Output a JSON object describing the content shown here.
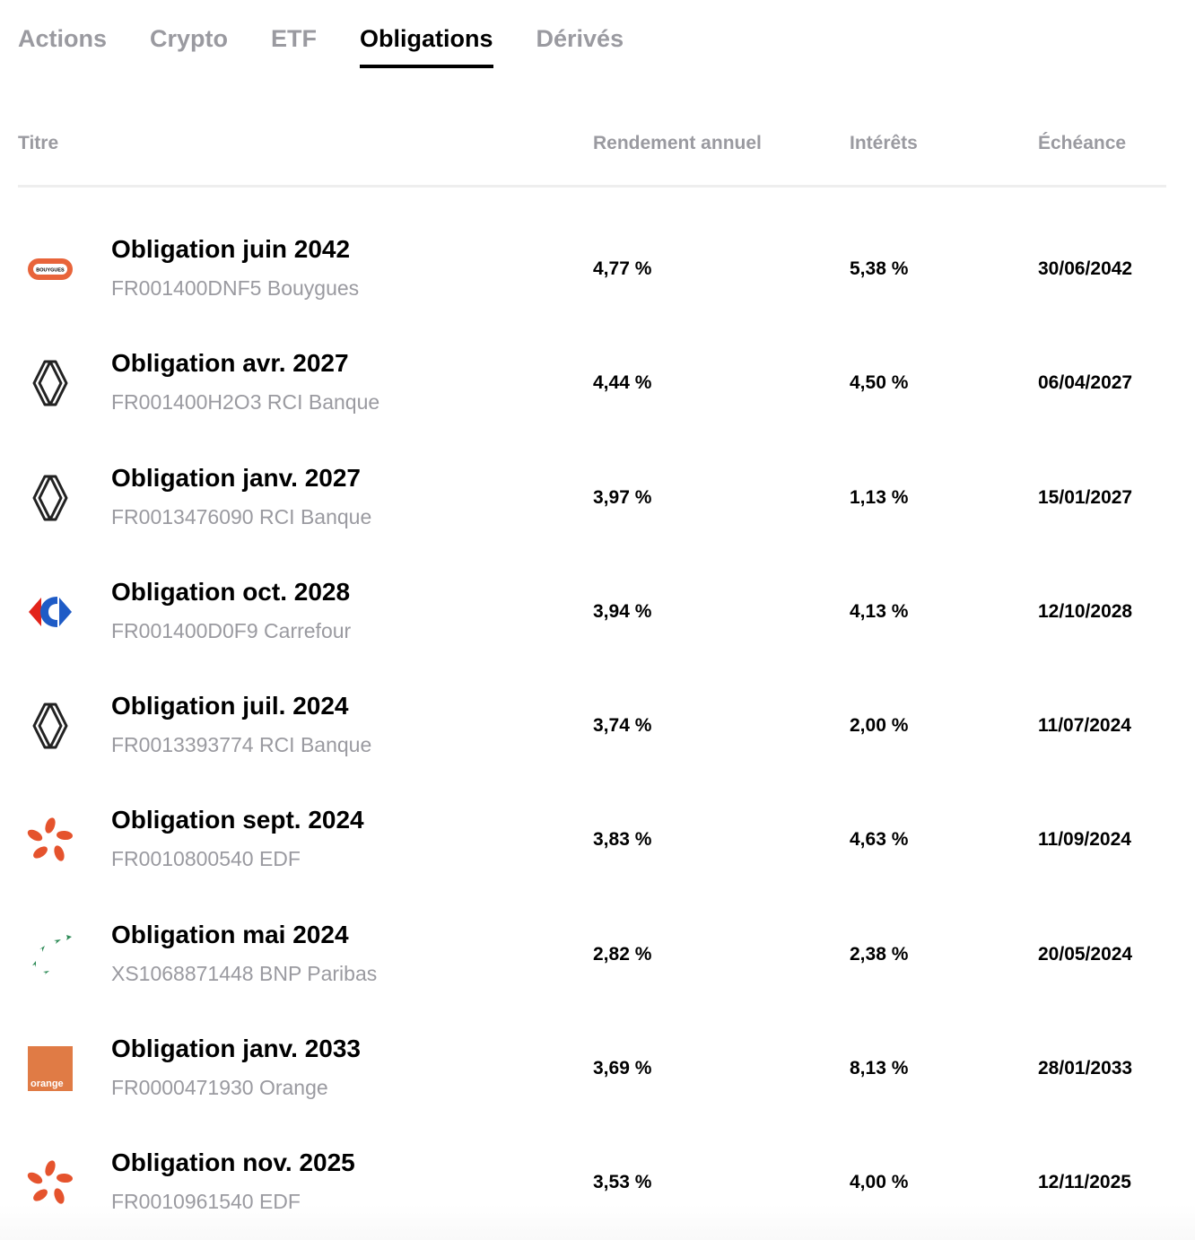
{
  "tabs": [
    {
      "label": "Actions",
      "active": false
    },
    {
      "label": "Crypto",
      "active": false
    },
    {
      "label": "ETF",
      "active": false
    },
    {
      "label": "Obligations",
      "active": true
    },
    {
      "label": "Dérivés",
      "active": false
    }
  ],
  "table": {
    "headers": {
      "title": "Titre",
      "yield": "Rendement annuel",
      "interest": "Intérêts",
      "maturity": "Échéance"
    },
    "rows": [
      {
        "icon": "bouygues-logo-icon",
        "logo_text": "BOUYGUES",
        "name": "Obligation juin 2042",
        "sub": "FR001400DNF5 Bouygues",
        "yield": "4,77 %",
        "interest": "5,38 %",
        "maturity": "30/06/2042"
      },
      {
        "icon": "renault-logo-icon",
        "name": "Obligation avr. 2027",
        "sub": "FR001400H2O3 RCI Banque",
        "yield": "4,44 %",
        "interest": "4,50 %",
        "maturity": "06/04/2027"
      },
      {
        "icon": "renault-logo-icon",
        "name": "Obligation janv. 2027",
        "sub": "FR0013476090 RCI Banque",
        "yield": "3,97 %",
        "interest": "1,13 %",
        "maturity": "15/01/2027"
      },
      {
        "icon": "carrefour-logo-icon",
        "name": "Obligation oct. 2028",
        "sub": "FR001400D0F9 Carrefour",
        "yield": "3,94 %",
        "interest": "4,13 %",
        "maturity": "12/10/2028"
      },
      {
        "icon": "renault-logo-icon",
        "name": "Obligation juil. 2024",
        "sub": "FR0013393774 RCI Banque",
        "yield": "3,74 %",
        "interest": "2,00 %",
        "maturity": "11/07/2024"
      },
      {
        "icon": "edf-logo-icon",
        "name": "Obligation sept. 2024",
        "sub": "FR0010800540 EDF",
        "yield": "3,83 %",
        "interest": "4,63 %",
        "maturity": "11/09/2024"
      },
      {
        "icon": "bnp-paribas-logo-icon",
        "name": "Obligation mai 2024",
        "sub": "XS1068871448 BNP Paribas",
        "yield": "2,82 %",
        "interest": "2,38 %",
        "maturity": "20/05/2024"
      },
      {
        "icon": "orange-logo-icon",
        "logo_text": "orange",
        "name": "Obligation janv. 2033",
        "sub": "FR0000471930 Orange",
        "yield": "3,69 %",
        "interest": "8,13 %",
        "maturity": "28/01/2033"
      },
      {
        "icon": "edf-logo-icon",
        "name": "Obligation nov. 2025",
        "sub": "FR0010961540 EDF",
        "yield": "3,53 %",
        "interest": "4,00 %",
        "maturity": "12/11/2025"
      }
    ]
  },
  "colors": {
    "active_text": "#000000",
    "muted_text": "#9a9aa0",
    "divider": "#eeeeee",
    "bouygues_orange": "#e8643a",
    "carrefour_blue": "#1e5bc6",
    "carrefour_red": "#e2231a",
    "edf_orange": "#e5532d",
    "bnp_green": "#2e8b57",
    "orange_brand": "#e07b45"
  }
}
